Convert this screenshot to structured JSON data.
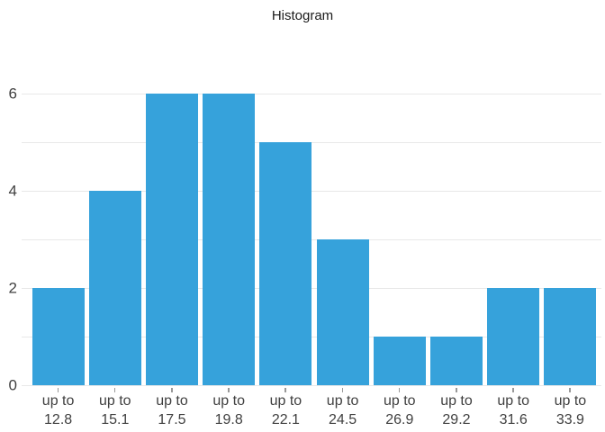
{
  "chart_data": {
    "type": "bar",
    "title": "Histogram",
    "categories": [
      "up to 12.8",
      "up to 15.1",
      "up to 17.5",
      "up to 19.8",
      "up to 22.1",
      "up to 24.5",
      "up to 26.9",
      "up to 29.2",
      "up to 31.6",
      "up to 33.9"
    ],
    "category_prefix": "up to",
    "bin_upper_edges": [
      "12.8",
      "15.1",
      "17.5",
      "19.8",
      "22.1",
      "24.5",
      "26.9",
      "29.2",
      "31.6",
      "33.9"
    ],
    "values": [
      2,
      4,
      6,
      6,
      5,
      3,
      1,
      1,
      2,
      2
    ],
    "xlabel": "",
    "ylabel": "",
    "ylim": [
      0,
      6
    ],
    "yticks": [
      0,
      2,
      4,
      6
    ],
    "grid": "horizontal, every 1 unit",
    "legend": "none",
    "colors": {
      "bar": "#36a2db",
      "gridline": "#e8e8e8",
      "axis_label": "#404040",
      "title": "#1a1a1a",
      "tick_mark": "#999999"
    }
  }
}
